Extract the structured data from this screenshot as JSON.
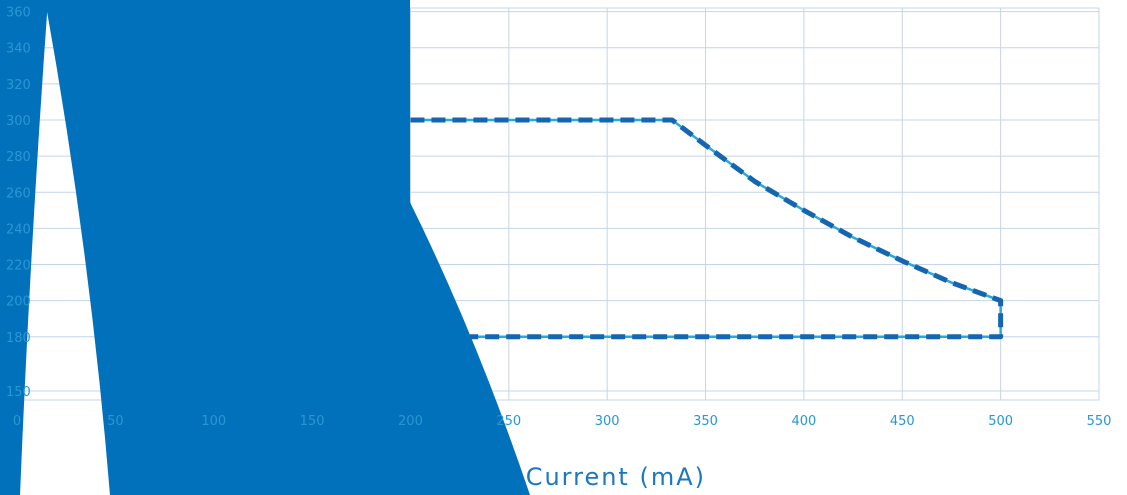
{
  "chart_data": {
    "type": "line",
    "xlabel": "Current (mA)",
    "ylabel": "",
    "xlim": [
      0,
      550
    ],
    "ylim": [
      145,
      362
    ],
    "x_ticks": [
      0,
      50,
      100,
      150,
      200,
      250,
      300,
      350,
      400,
      450,
      500,
      550
    ],
    "y_ticks": [
      150,
      180,
      200,
      220,
      240,
      260,
      280,
      300,
      320,
      340,
      360
    ],
    "grid": true,
    "series": [
      {
        "style": "solid",
        "color": "#29a8dc",
        "points": [
          [
            200,
            300
          ],
          [
            250,
            300
          ],
          [
            300,
            300
          ],
          [
            333,
            300
          ],
          [
            350,
            286
          ],
          [
            375,
            266
          ],
          [
            400,
            250
          ],
          [
            425,
            235
          ],
          [
            450,
            222
          ],
          [
            475,
            210
          ],
          [
            500,
            200
          ],
          [
            500,
            180
          ],
          [
            450,
            180
          ],
          [
            400,
            180
          ],
          [
            350,
            180
          ],
          [
            300,
            180
          ],
          [
            250,
            180
          ],
          [
            200,
            180
          ]
        ]
      },
      {
        "style": "dashed",
        "color": "#1565b0",
        "points": [
          [
            200,
            300
          ],
          [
            250,
            300
          ],
          [
            300,
            300
          ],
          [
            333,
            300
          ],
          [
            350,
            286
          ],
          [
            375,
            266
          ],
          [
            400,
            250
          ],
          [
            425,
            235
          ],
          [
            450,
            222
          ],
          [
            475,
            210
          ],
          [
            500,
            200
          ],
          [
            500,
            180
          ],
          [
            450,
            180
          ],
          [
            400,
            180
          ],
          [
            350,
            180
          ],
          [
            300,
            180
          ],
          [
            250,
            180
          ],
          [
            200,
            180
          ]
        ]
      }
    ]
  },
  "overlay": {
    "color": "#0271bb"
  }
}
